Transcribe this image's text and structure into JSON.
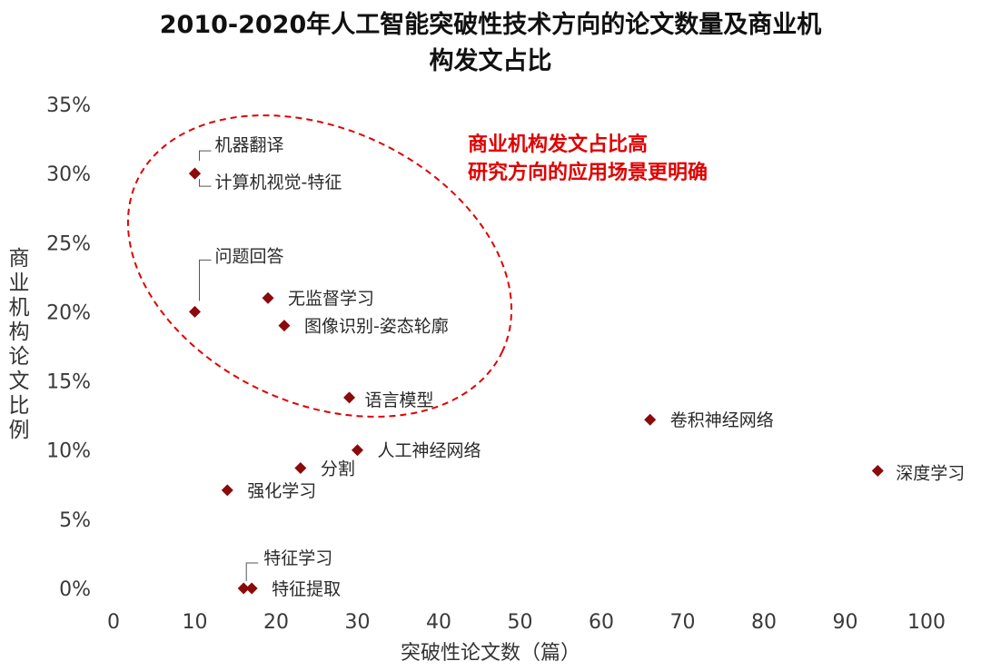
{
  "chart_data": {
    "type": "scatter",
    "title_line1": "2010-2020年人工智能突破性技术方向的论文数量及商业机",
    "title_line2": "构发文占比",
    "xlabel": "突破性论文数（篇）",
    "ylabel": "商业机构论文比例",
    "xlim": [
      0,
      100
    ],
    "ylim": [
      0,
      35
    ],
    "x_ticks": [
      "0",
      "10",
      "20",
      "30",
      "40",
      "50",
      "60",
      "70",
      "80",
      "90",
      "100"
    ],
    "y_ticks": [
      "0%",
      "5%",
      "10%",
      "15%",
      "20%",
      "25%",
      "30%",
      "35%"
    ],
    "grid": false,
    "marker_color": "#8b0a0a",
    "annotation_color": "#e00000",
    "annotation_lines": [
      "商业机构发文占比高",
      "研究方向的应用场景更明确"
    ],
    "points": [
      {
        "label": "机器翻译",
        "x": 10,
        "y": 30
      },
      {
        "label": "计算机视觉-特征",
        "x": 10,
        "y": 30
      },
      {
        "label": "问题回答",
        "x": 10,
        "y": 20
      },
      {
        "label": "无监督学习",
        "x": 19,
        "y": 21
      },
      {
        "label": "图像识别-姿态轮廓",
        "x": 21,
        "y": 19
      },
      {
        "label": "语言模型",
        "x": 29,
        "y": 13.8
      },
      {
        "label": "卷积神经网络",
        "x": 66,
        "y": 12.2
      },
      {
        "label": "人工神经网络",
        "x": 30,
        "y": 10
      },
      {
        "label": "深度学习",
        "x": 94,
        "y": 8.5
      },
      {
        "label": "分割",
        "x": 23,
        "y": 8.7
      },
      {
        "label": "强化学习",
        "x": 14,
        "y": 7.1
      },
      {
        "label": "特征学习",
        "x": 16,
        "y": 0
      },
      {
        "label": "特征提取",
        "x": 17,
        "y": 0
      }
    ]
  }
}
